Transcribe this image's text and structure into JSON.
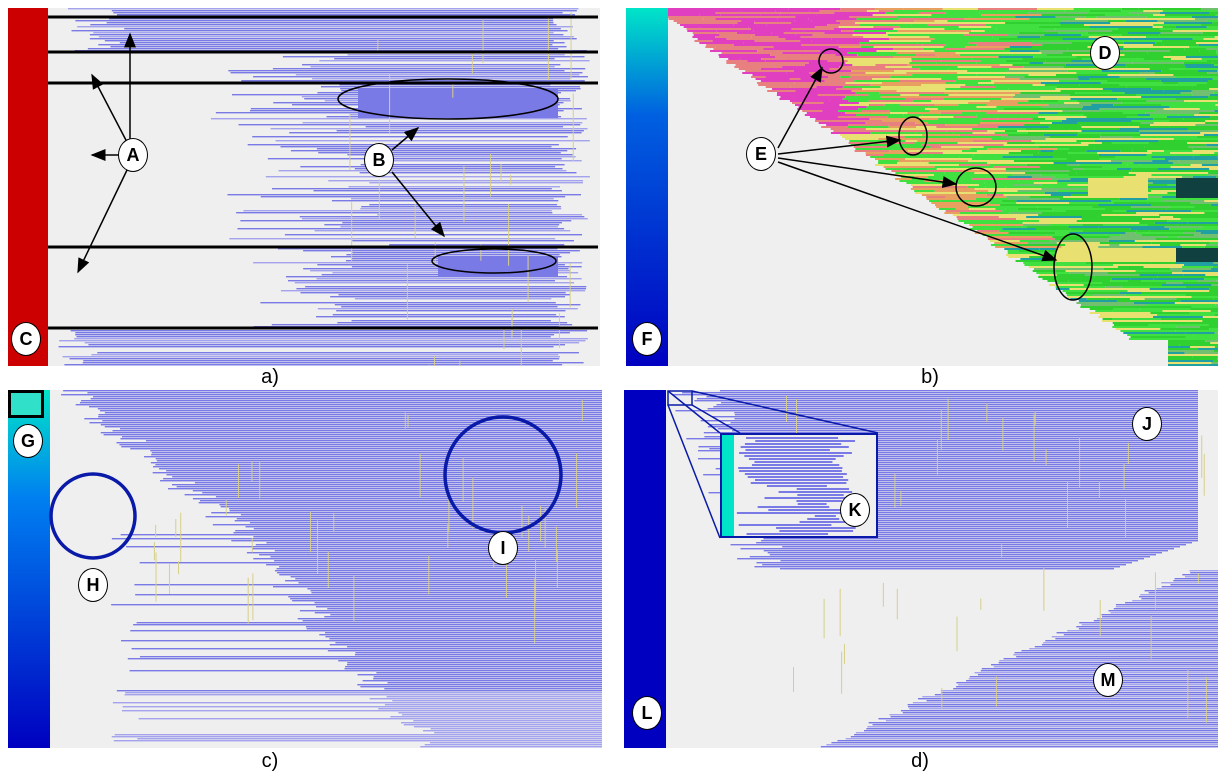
{
  "captions": {
    "a": "a)",
    "b": "b)",
    "c": "c)",
    "d": "d)"
  },
  "labels": {
    "A": "A",
    "B": "B",
    "C": "C",
    "D": "D",
    "E": "E",
    "F": "F",
    "G": "G",
    "H": "H",
    "I": "I",
    "J": "J",
    "K": "K",
    "L": "L",
    "M": "M"
  },
  "colors": {
    "background": "#efefef",
    "row_blue": "#7a7ae6",
    "row_blue_light": "#a4a4ee",
    "highlight_yellow": "#d6cf8a",
    "strip_red": "#cc0000",
    "gradient_top": "#00e5c8",
    "gradient_bottom": "#0000c0",
    "magenta": "#e040c0",
    "salmon": "#e88080",
    "green": "#40e040",
    "circle_blue": "#0a1aa8"
  }
}
